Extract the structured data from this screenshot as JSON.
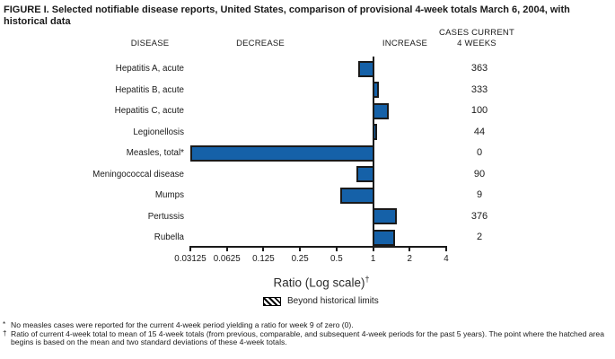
{
  "figure": {
    "title": "FIGURE I. Selected notifiable disease reports, United States, comparison of provisional 4-week totals March 6, 2004, with historical data"
  },
  "headers": {
    "disease": "DISEASE",
    "decrease": "DECREASE",
    "increase": "INCREASE",
    "cases_line1": "CASES CURRENT",
    "cases_line2": "4 WEEKS"
  },
  "chart_data": {
    "type": "bar",
    "orientation": "horizontal",
    "scale": "log2",
    "title": "Selected notifiable disease reports, United States, comparison of provisional 4-week totals March 6, 2004, with historical data",
    "xlabel": "Ratio (Log scale)",
    "xlabel_sup": "†",
    "axis": {
      "range": [
        0.03125,
        4
      ],
      "ticks": [
        0.03125,
        0.0625,
        0.125,
        0.25,
        0.5,
        1,
        2,
        4
      ],
      "tick_labels": [
        "0.03125",
        "0.0625",
        "0.125",
        "0.25",
        "0.5",
        "1",
        "2",
        "4"
      ],
      "baseline": 1,
      "grid": false
    },
    "bar_color": "#1561A8",
    "series": [
      {
        "disease": "Hepatitis A, acute",
        "ratio": 0.75,
        "cases": "363"
      },
      {
        "disease": "Hepatitis B, acute",
        "ratio": 1.12,
        "cases": "333"
      },
      {
        "disease": "Hepatitis C, acute",
        "ratio": 1.35,
        "cases": "100"
      },
      {
        "disease": "Legionellosis",
        "ratio": 1.08,
        "cases": "44"
      },
      {
        "disease": "Measles, total*",
        "ratio": 0,
        "cases": "0"
      },
      {
        "disease": "Meningococcal disease",
        "ratio": 0.73,
        "cases": "90"
      },
      {
        "disease": "Mumps",
        "ratio": 0.54,
        "cases": "9"
      },
      {
        "disease": "Pertussis",
        "ratio": 1.58,
        "cases": "376"
      },
      {
        "disease": "Rubella",
        "ratio": 1.52,
        "cases": "2"
      }
    ],
    "legend": [
      {
        "swatch": "black-diagonal-hatch",
        "label": "Beyond historical limits"
      }
    ],
    "legend_position": "bottom-center"
  },
  "footnotes": [
    {
      "marker": "*",
      "text": "No measles cases were reported for the current 4-week period yielding a ratio for week 9 of zero (0)."
    },
    {
      "marker": "†",
      "text": "Ratio of current 4-week total to mean of 15 4-week totals (from previous, comparable, and subsequent 4-week periods for the past 5 years). The point where the hatched area begins is based on the mean and two standard deviations of these 4-week totals."
    }
  ]
}
